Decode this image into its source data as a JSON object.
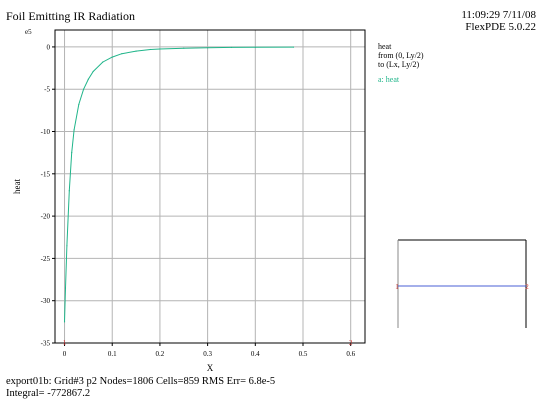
{
  "header": {
    "title": "Foil Emitting IR Radiation",
    "time": "11:09:29 7/11/08",
    "version": "FlexPDE 5.0.22"
  },
  "legend": {
    "title": "heat",
    "from": "from (0, Ly/2)",
    "to": "to (Lx, Ly/2)",
    "series_label": "a: heat"
  },
  "footer": {
    "line1": "export01b:  Grid#3  p2  Nodes=1806 Cells=859 RMS Err= 6.8e-5",
    "line2": "Integral= -772867.2"
  },
  "inset": {
    "left_marker": "1",
    "right_marker": "2"
  },
  "chart_data": {
    "type": "line",
    "xlabel": "X",
    "ylabel": "heat",
    "y_scale_label": "e5",
    "xlim": [
      -0.02,
      0.63
    ],
    "ylim": [
      -35,
      2
    ],
    "x_ticks": [
      0,
      0.1,
      0.2,
      0.3,
      0.4,
      0.5,
      0.6
    ],
    "x_tick_labels": [
      "0",
      "0.1",
      "0.2",
      "0.3",
      "0.4",
      "0.5",
      "0.6"
    ],
    "y_ticks": [
      0,
      -5,
      -10,
      -15,
      -20,
      -25,
      -30,
      -35
    ],
    "y_tick_labels": [
      "0",
      "-5",
      "-10",
      "-15",
      "-20",
      "-25",
      "-30",
      "-35"
    ],
    "grid": true,
    "line_color": "#20b58a",
    "series": [
      {
        "name": "heat",
        "x": [
          0.0,
          0.002,
          0.005,
          0.01,
          0.015,
          0.02,
          0.03,
          0.04,
          0.05,
          0.06,
          0.08,
          0.1,
          0.12,
          0.15,
          0.18,
          0.2,
          0.25,
          0.3,
          0.35,
          0.4,
          0.48
        ],
        "y": [
          -32.5,
          -28.5,
          -23.5,
          -17.0,
          -12.5,
          -9.8,
          -6.8,
          -5.0,
          -3.8,
          -2.9,
          -1.8,
          -1.2,
          -0.8,
          -0.5,
          -0.3,
          -0.25,
          -0.15,
          -0.1,
          -0.06,
          -0.04,
          -0.02
        ]
      }
    ],
    "markers": [
      {
        "label": "1",
        "x": 0.0
      },
      {
        "label": "2",
        "x": 0.6
      }
    ]
  }
}
